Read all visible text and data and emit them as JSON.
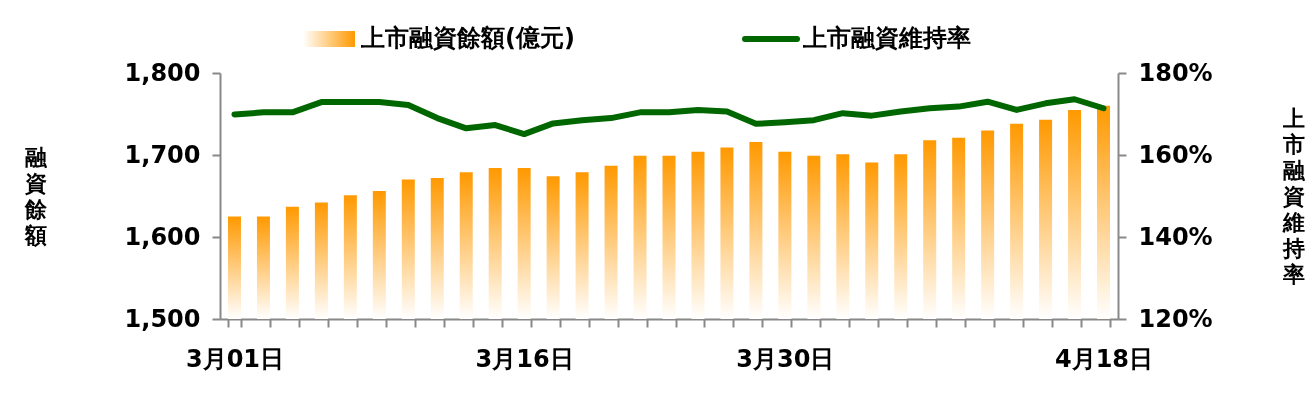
{
  "chart_data": {
    "type": "bar",
    "categories": [
      "3月01日",
      null,
      null,
      null,
      null,
      null,
      null,
      null,
      null,
      null,
      "3月16日",
      null,
      null,
      null,
      null,
      null,
      null,
      null,
      null,
      "3月30日",
      null,
      null,
      null,
      null,
      null,
      null,
      null,
      null,
      null,
      null,
      "4月18日"
    ],
    "ylabel": "融資餘額",
    "y2label": "上市融資維持率",
    "ylim": [
      1500,
      1800
    ],
    "yticks": [
      {
        "value": 1500,
        "label": "1,500"
      },
      {
        "value": 1600,
        "label": "1,600"
      },
      {
        "value": 1700,
        "label": "1,700"
      },
      {
        "value": 1800,
        "label": "1,800"
      }
    ],
    "y2lim": [
      120,
      180
    ],
    "y2ticks": [
      {
        "value": 120,
        "label": "120%"
      },
      {
        "value": 140,
        "label": "140%"
      },
      {
        "value": 160,
        "label": "160%"
      },
      {
        "value": 180,
        "label": "180%"
      }
    ],
    "legend": "top",
    "grid": false,
    "series": [
      {
        "name": "上市融資餘額(億元)",
        "color": "#ff9900",
        "values": [
          1625,
          1625,
          1637,
          1642,
          1651,
          1656,
          1670,
          1672,
          1679,
          1684,
          1684,
          1674,
          1679,
          1687,
          1699,
          1699,
          1704,
          1709,
          1716,
          1704,
          1699,
          1701,
          1691,
          1701,
          1718,
          1721,
          1730,
          1738,
          1743,
          1755,
          1760
        ]
      },
      {
        "name": "上市融資維持率",
        "type": "line",
        "axis": "y2",
        "color": "#006600",
        "values": [
          169.9,
          170.4,
          170.4,
          172.9,
          172.9,
          172.9,
          172.2,
          169.0,
          166.5,
          167.3,
          165.1,
          167.7,
          168.5,
          169.0,
          170.4,
          170.4,
          171.0,
          170.6,
          167.6,
          168.0,
          168.5,
          170.2,
          169.6,
          170.6,
          171.4,
          171.8,
          173.0,
          171.0,
          172.6,
          173.6,
          171.4
        ]
      }
    ]
  }
}
